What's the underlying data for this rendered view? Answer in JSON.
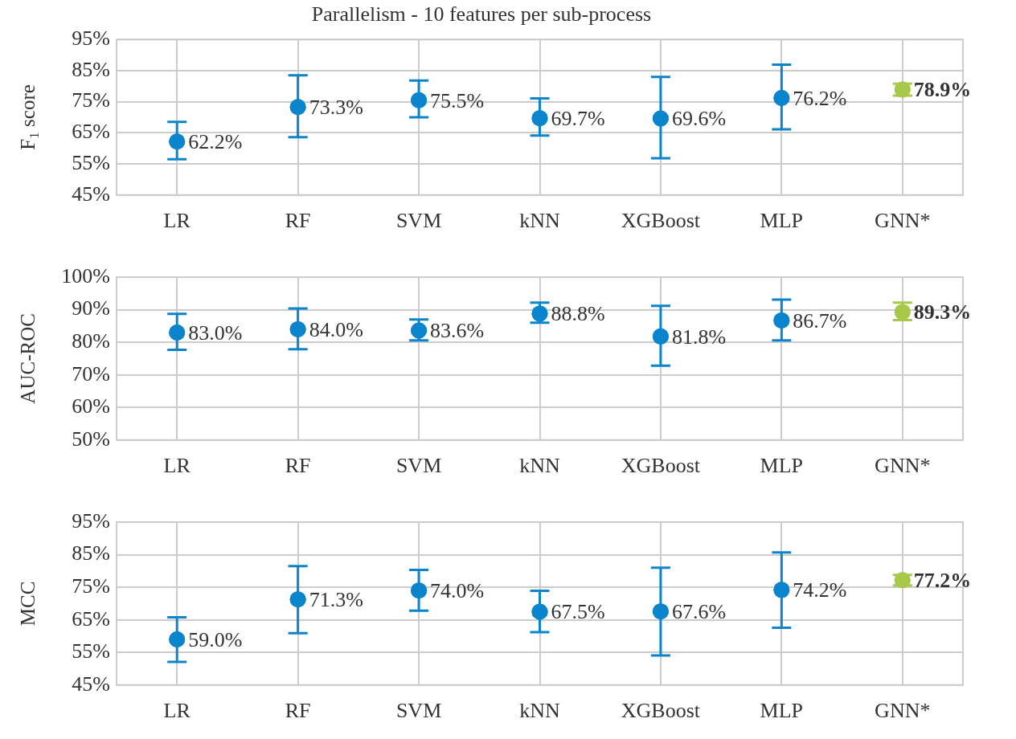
{
  "chart_data": [
    {
      "type": "scatter",
      "title": "Parallelism - 10 features per sub-process",
      "ylabel": "F$_{1}$ score",
      "categories": [
        "LR",
        "RF",
        "SVM",
        "kNN",
        "XGBoost",
        "MLP",
        "GNN*"
      ],
      "ylim": [
        45,
        95
      ],
      "yticks": [
        {
          "value": 45,
          "label": "45%"
        },
        {
          "value": 55,
          "label": "55%"
        },
        {
          "value": 65,
          "label": "65%"
        },
        {
          "value": 75,
          "label": "75%"
        },
        {
          "value": 85,
          "label": "85%"
        },
        {
          "value": 95,
          "label": "95%"
        }
      ],
      "grid": true,
      "legend": false,
      "marker": "circle",
      "series": [
        {
          "color": "#0a84cc",
          "values": [
            62.2,
            73.3,
            75.5,
            69.7,
            69.6,
            76.2,
            null
          ],
          "errors": [
            [
              56.5,
              68.5
            ],
            [
              63.6,
              83.5
            ],
            [
              70.0,
              81.8
            ],
            [
              64.1,
              76.1
            ],
            [
              56.8,
              83.0
            ],
            [
              66.1,
              86.9
            ],
            null
          ],
          "value_labels": [
            "62.2%",
            "73.3%",
            "75.5%",
            "69.7%",
            "69.6%",
            "76.2%",
            null
          ]
        },
        {
          "color": "#a8c84a",
          "values": [
            null,
            null,
            null,
            null,
            null,
            null,
            78.9
          ],
          "errors": [
            null,
            null,
            null,
            null,
            null,
            null,
            [
              77.0,
              80.8
            ]
          ],
          "value_labels": [
            null,
            null,
            null,
            null,
            null,
            null,
            "78.9%"
          ]
        }
      ]
    },
    {
      "type": "scatter",
      "ylabel": "AUC-ROC",
      "categories": [
        "LR",
        "RF",
        "SVM",
        "kNN",
        "XGBoost",
        "MLP",
        "GNN*"
      ],
      "ylim": [
        50,
        100
      ],
      "yticks": [
        {
          "value": 50,
          "label": "50%"
        },
        {
          "value": 60,
          "label": "60%"
        },
        {
          "value": 70,
          "label": "70%"
        },
        {
          "value": 80,
          "label": "80%"
        },
        {
          "value": 90,
          "label": "90%"
        },
        {
          "value": 100,
          "label": "100%"
        }
      ],
      "grid": true,
      "legend": false,
      "marker": "circle",
      "series": [
        {
          "color": "#0a84cc",
          "values": [
            83.0,
            84.0,
            83.6,
            88.8,
            81.8,
            86.7,
            null
          ],
          "errors": [
            [
              77.7,
              88.7
            ],
            [
              77.9,
              90.4
            ],
            [
              80.6,
              87.0
            ],
            [
              86.0,
              92.2
            ],
            [
              72.8,
              91.2
            ],
            [
              80.6,
              93.1
            ],
            null
          ],
          "value_labels": [
            "83.0%",
            "84.0%",
            "83.6%",
            "88.8%",
            "81.8%",
            "86.7%",
            null
          ]
        },
        {
          "color": "#a8c84a",
          "values": [
            null,
            null,
            null,
            null,
            null,
            null,
            89.3
          ],
          "errors": [
            null,
            null,
            null,
            null,
            null,
            null,
            [
              86.8,
              92.2
            ]
          ],
          "value_labels": [
            null,
            null,
            null,
            null,
            null,
            null,
            "89.3%"
          ]
        }
      ]
    },
    {
      "type": "scatter",
      "ylabel": "MCC",
      "categories": [
        "LR",
        "RF",
        "SVM",
        "kNN",
        "XGBoost",
        "MLP",
        "GNN*"
      ],
      "ylim": [
        45,
        95
      ],
      "yticks": [
        {
          "value": 45,
          "label": "45%"
        },
        {
          "value": 55,
          "label": "55%"
        },
        {
          "value": 65,
          "label": "65%"
        },
        {
          "value": 75,
          "label": "75%"
        },
        {
          "value": 85,
          "label": "85%"
        },
        {
          "value": 95,
          "label": "95%"
        }
      ],
      "grid": true,
      "legend": false,
      "marker": "circle",
      "series": [
        {
          "color": "#0a84cc",
          "values": [
            59.0,
            71.3,
            74.0,
            67.5,
            67.6,
            74.2,
            null
          ],
          "errors": [
            [
              52.1,
              65.8
            ],
            [
              60.9,
              81.5
            ],
            [
              67.8,
              80.3
            ],
            [
              61.2,
              73.9
            ],
            [
              54.1,
              81.0
            ],
            [
              62.6,
              85.7
            ],
            null
          ],
          "value_labels": [
            "59.0%",
            "71.3%",
            "74.0%",
            "67.5%",
            "67.6%",
            "74.2%",
            null
          ]
        },
        {
          "color": "#a8c84a",
          "values": [
            null,
            null,
            null,
            null,
            null,
            null,
            77.2
          ],
          "errors": [
            null,
            null,
            null,
            null,
            null,
            null,
            [
              75.6,
              78.8
            ]
          ],
          "value_labels": [
            null,
            null,
            null,
            null,
            null,
            null,
            "77.2%"
          ]
        }
      ]
    }
  ]
}
